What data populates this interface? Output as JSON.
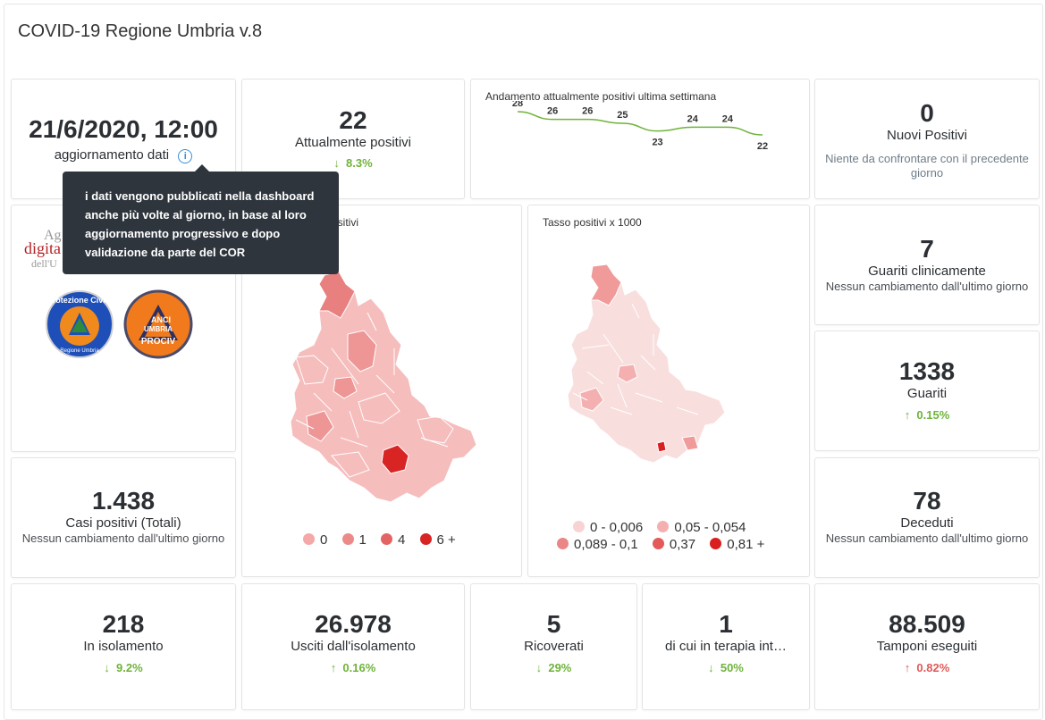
{
  "header": {
    "title": "COVID-19 Regione Umbria v.8"
  },
  "update": {
    "datetime": "21/6/2020, 12:00",
    "label": "aggiornamento dati"
  },
  "tooltip": {
    "text": "i dati vengono pubblicati nella dashboard anche più volte al giorno, in base al loro aggiornamento progressivo e dopo validazione da parte del COR"
  },
  "attualmente_positivi": {
    "value": "22",
    "label": "Attualmente positivi",
    "change": "8.3%",
    "arrow": "↓"
  },
  "trend": {
    "title": "Andamento attualmente positivi ultima settimana",
    "chart_data": {
      "type": "line",
      "title": "Andamento attualmente positivi ultima settimana",
      "series": [
        {
          "values": [
            28,
            26,
            26,
            25,
            23,
            24,
            24,
            22
          ]
        }
      ],
      "color": "#6fb33b"
    }
  },
  "nuovi_positivi": {
    "value": "0",
    "label": "Nuovi Positivi",
    "note": "Niente da confrontare con il precedente giorno"
  },
  "logos": {
    "agenzia_partial_1": "Ag",
    "agenzia_partial_2": "digita",
    "agenzia_partial_3": "dell'U",
    "protezione": "Protezione Civile",
    "protezione_sub": "Regione Umbria",
    "anci_1": "ANCI",
    "anci_2": "UMBRIA",
    "anci_3": "PROCIV"
  },
  "map1": {
    "title": "ositivi",
    "legend": [
      {
        "label": "0",
        "color": "#f4a8a8"
      },
      {
        "label": "1",
        "color": "#ec8a8a"
      },
      {
        "label": "4",
        "color": "#e46464"
      },
      {
        "label": "6 +",
        "color": "#d92424"
      }
    ]
  },
  "map2": {
    "title": "Tasso positivi x 1000",
    "legend": [
      {
        "label": "0 - 0,006",
        "color": "#f8d3d3"
      },
      {
        "label": "0,05 - 0,054",
        "color": "#f4b0b0"
      },
      {
        "label": "0,089 - 0,1",
        "color": "#ec8585"
      },
      {
        "label": "0,37",
        "color": "#e45a5a"
      },
      {
        "label": "0,81 +",
        "color": "#d91f1f"
      }
    ]
  },
  "guariti_clinicamente": {
    "value": "7",
    "label": "Guariti clinicamente",
    "note": "Nessun cambiamento dall'ultimo giorno"
  },
  "guariti": {
    "value": "1338",
    "label": "Guariti",
    "change": "0.15%",
    "arrow": "↑"
  },
  "casi_totali": {
    "value": "1.438",
    "label": "Casi positivi (Totali)",
    "note": "Nessun cambiamento dall'ultimo giorno"
  },
  "deceduti": {
    "value": "78",
    "label": "Deceduti",
    "note": "Nessun cambiamento dall'ultimo giorno"
  },
  "isolamento": {
    "value": "218",
    "label": "In isolamento",
    "change": "9.2%",
    "arrow": "↓"
  },
  "usciti": {
    "value": "26.978",
    "label": "Usciti dall'isolamento",
    "change": "0.16%",
    "arrow": "↑"
  },
  "ricoverati": {
    "value": "5",
    "label": "Ricoverati",
    "change": "29%",
    "arrow": "↓"
  },
  "terapia": {
    "value": "1",
    "label": "di cui in terapia int…",
    "change": "50%",
    "arrow": "↓"
  },
  "tamponi": {
    "value": "88.509",
    "label": "Tamponi eseguiti",
    "change": "0.82%",
    "arrow": "↑"
  }
}
